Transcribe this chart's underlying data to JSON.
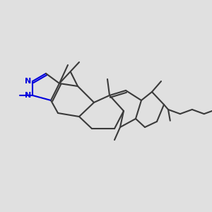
{
  "background_color": "#e0e0e0",
  "bond_color": "#3a3a3a",
  "pyrazole_color": "#0000dd",
  "lw": 1.5,
  "figsize": [
    3.0,
    3.0
  ],
  "dpi": 100
}
